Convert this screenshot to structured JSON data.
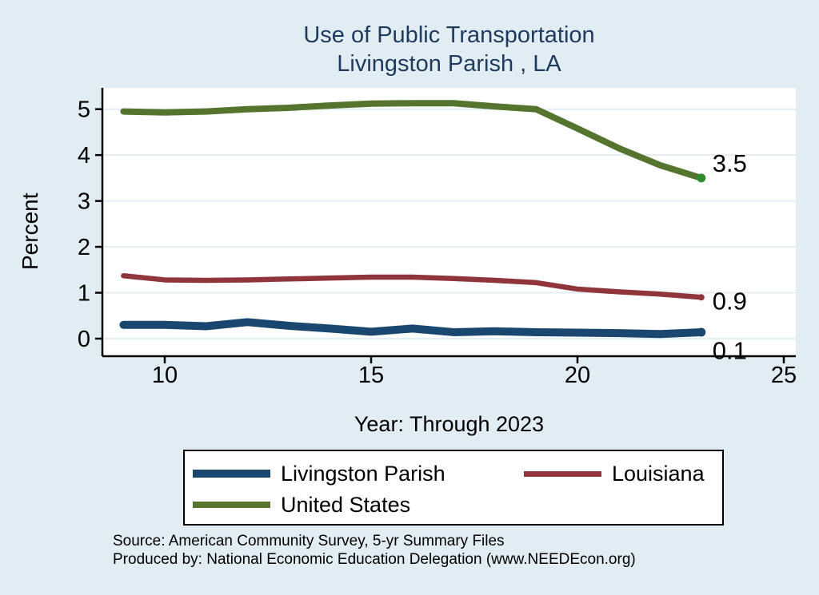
{
  "title": {
    "line1": "Use of Public Transportation",
    "line2": "Livingston Parish , LA"
  },
  "axes": {
    "y_label": "Percent",
    "x_label": "Year: Through 2023",
    "y_ticks": [
      "0",
      "1",
      "2",
      "3",
      "4",
      "5"
    ],
    "x_ticks": [
      "10",
      "15",
      "20",
      "25"
    ]
  },
  "legend": {
    "items": [
      {
        "label": "Livingston Parish",
        "color": "#1a476f",
        "swatch_height": 10
      },
      {
        "label": "Louisiana",
        "color": "#90353b",
        "swatch_height": 7
      },
      {
        "label": "United States",
        "color": "#55752f",
        "swatch_height": 8
      }
    ]
  },
  "footer": {
    "source": "Source: American Community Survey, 5-yr Summary Files",
    "produced": "Produced by: National Economic Education Delegation (www.NEEDEcon.org)"
  },
  "colors": {
    "background": "#e2edf3",
    "plot_background": "#ffffff",
    "gridline": "#e4edf3",
    "axis": "#000000",
    "title": "#1e3a5e",
    "livingston_parish": "#1a476f",
    "louisiana": "#90353b",
    "united_states": "#55752f",
    "us_end_marker": "#2e8b2e"
  },
  "chart_data": {
    "type": "line",
    "title": "Use of Public Transportation Livingston Parish , LA",
    "xlabel": "Year: Through 2023",
    "ylabel": "Percent",
    "x": [
      9,
      10,
      11,
      12,
      13,
      14,
      15,
      16,
      17,
      18,
      19,
      20,
      21,
      22,
      23
    ],
    "x_tick_values": [
      10,
      15,
      20,
      25
    ],
    "y_tick_values": [
      0,
      1,
      2,
      3,
      4,
      5
    ],
    "xlim": [
      8.5,
      25.3
    ],
    "ylim": [
      -0.38,
      5.47
    ],
    "grid": "horizontal",
    "legend_position": "bottom",
    "series": [
      {
        "name": "Livingston Parish",
        "color": "#1a476f",
        "line_width": 10,
        "end_label": "0.1",
        "values": [
          0.3,
          0.3,
          0.27,
          0.36,
          0.28,
          0.22,
          0.15,
          0.22,
          0.14,
          0.16,
          0.14,
          0.13,
          0.12,
          0.1,
          0.14
        ]
      },
      {
        "name": "Louisiana",
        "color": "#90353b",
        "line_width": 6.5,
        "end_label": "0.9",
        "values": [
          1.37,
          1.28,
          1.27,
          1.28,
          1.3,
          1.32,
          1.34,
          1.34,
          1.31,
          1.27,
          1.22,
          1.08,
          1.02,
          0.97,
          0.9
        ]
      },
      {
        "name": "United States",
        "color": "#55752f",
        "line_width": 8,
        "end_label": "3.5",
        "marker_color": "#2e8b2e",
        "values": [
          4.95,
          4.93,
          4.95,
          5.0,
          5.03,
          5.08,
          5.12,
          5.13,
          5.13,
          5.06,
          5.0,
          4.58,
          4.15,
          3.78,
          3.5
        ]
      }
    ]
  }
}
